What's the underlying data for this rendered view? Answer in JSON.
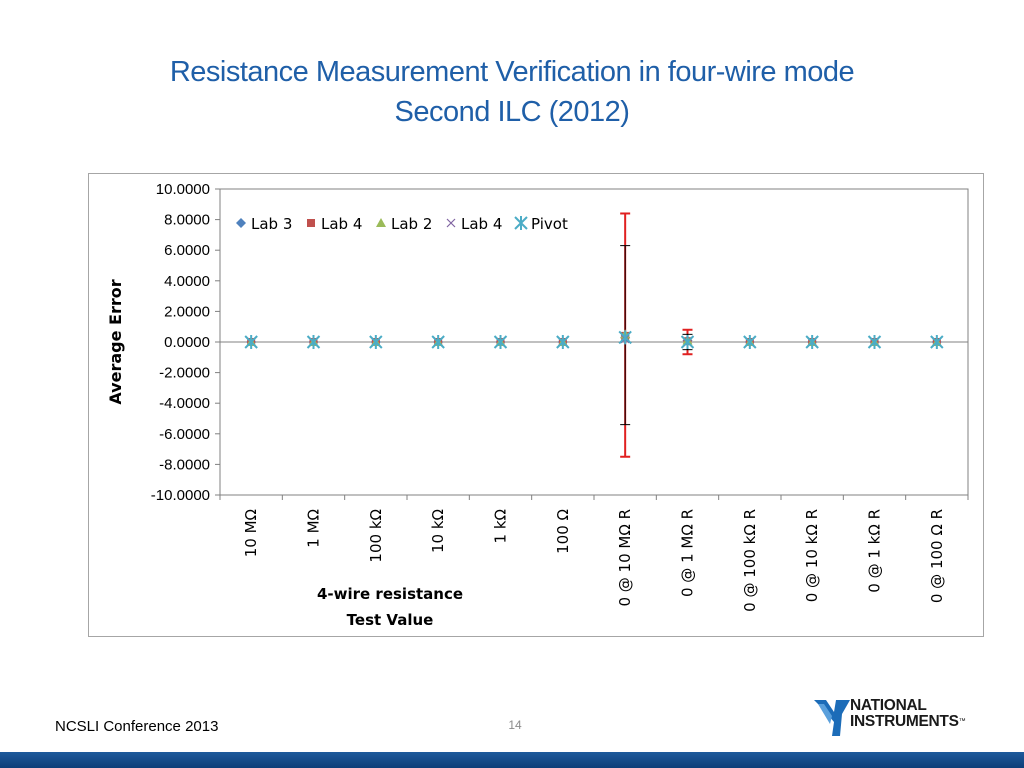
{
  "slide": {
    "title_line1": "Resistance Measurement Verification in four-wire mode",
    "title_line2": "Second ILC (2012)",
    "footer_left": "NCSLI Conference 2013",
    "page_number": "14",
    "logo_line1": "NATIONAL",
    "logo_line2": "INSTRUMENTS",
    "logo_tm": "™",
    "colors": {
      "title": "#1f5fa8",
      "bottom_bar": "#1e5a9c",
      "logo_blue": "#1c6cb8"
    }
  },
  "chart_data": {
    "type": "scatter",
    "title": "",
    "ylabel": "Average Error",
    "xlabel_line1": "4-wire resistance",
    "xlabel_line2": "Test Value",
    "ylim": [
      -10,
      10
    ],
    "ytick_values": [
      10,
      8,
      6,
      4,
      2,
      0,
      -2,
      -4,
      -6,
      -8,
      -10
    ],
    "ytick_labels": [
      "10.0000",
      "8.0000",
      "6.0000",
      "4.0000",
      "2.0000",
      "0.0000",
      "-2.0000",
      "-4.0000",
      "-6.0000",
      "-8.0000",
      "-10.0000"
    ],
    "grid": false,
    "legend_position": "top-left",
    "categories": [
      "10 MΩ",
      "1 MΩ",
      "100 kΩ",
      "10 kΩ",
      "1 kΩ",
      "100 Ω",
      "0 @ 10 MΩ R",
      "0 @ 1 MΩ R",
      "0 @ 100 kΩ R",
      "0 @ 10 kΩ R",
      "0 @ 1 kΩ R",
      "0 @ 100 Ω R"
    ],
    "series": [
      {
        "name": "Lab 3",
        "marker": "diamond",
        "color": "#4f81bd",
        "values": [
          0,
          0,
          0,
          0,
          0,
          0,
          0.3,
          0.1,
          0,
          0,
          0,
          0
        ]
      },
      {
        "name": "Lab 4",
        "marker": "square",
        "color": "#c0504d",
        "values": [
          0,
          0,
          0,
          0,
          0,
          0,
          0.4,
          0.05,
          0,
          0,
          0,
          0
        ],
        "error_bars": [
          null,
          null,
          null,
          null,
          null,
          null,
          [
            -7.5,
            8.4
          ],
          [
            -0.8,
            0.8
          ],
          null,
          null,
          null,
          null
        ]
      },
      {
        "name": "Lab 2",
        "marker": "triangle",
        "color": "#9bbb59",
        "values": [
          0,
          0,
          0,
          0,
          0,
          0,
          0.5,
          0.1,
          0,
          0,
          0,
          0
        ]
      },
      {
        "name": "Lab 4",
        "marker": "x",
        "color": "#8064a2",
        "values": [
          0,
          0,
          0,
          0,
          0,
          0,
          0.2,
          0,
          0,
          0,
          0,
          0
        ],
        "error_bars": [
          null,
          null,
          null,
          null,
          null,
          null,
          [
            -5.4,
            6.3
          ],
          [
            -0.5,
            0.5
          ],
          null,
          null,
          null,
          null
        ]
      },
      {
        "name": "Pivot",
        "marker": "star",
        "color": "#4bacc6",
        "values": [
          0,
          0,
          0,
          0,
          0,
          0,
          0.3,
          0,
          0,
          0,
          0,
          0
        ]
      }
    ]
  }
}
